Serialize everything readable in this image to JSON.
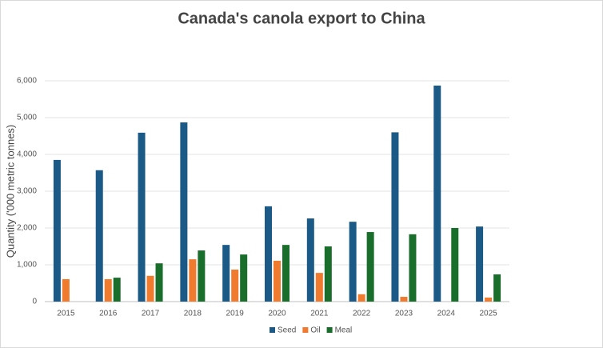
{
  "chart_data": {
    "type": "bar",
    "title": "Canada's canola export to China",
    "y_label": "Quantity ('000 metric tonnes)",
    "categories": [
      "2015",
      "2016",
      "2017",
      "2018",
      "2019",
      "2020",
      "2021",
      "2022",
      "2023",
      "2024",
      "2025"
    ],
    "series": [
      {
        "name": "Seed",
        "color": "#1b5a86",
        "values": [
          3850,
          3570,
          4590,
          4870,
          1540,
          2590,
          2260,
          2170,
          4600,
          5870,
          2040
        ]
      },
      {
        "name": "Oil",
        "color": "#f07b2f",
        "values": [
          610,
          610,
          700,
          1150,
          870,
          1110,
          780,
          200,
          130,
          null,
          110
        ]
      },
      {
        "name": "Meal",
        "color": "#1a6e2b",
        "values": [
          null,
          650,
          1040,
          1390,
          1280,
          1540,
          1500,
          1890,
          1830,
          2000,
          740
        ]
      }
    ],
    "ylim": [
      0,
      6000
    ],
    "yticks": [
      0,
      {
        "value": 1000,
        "label": "1,000"
      },
      {
        "value": 2000,
        "label": "2,000"
      },
      {
        "value": 3000,
        "label": "3,000"
      },
      {
        "value": 4000,
        "label": "4,000"
      },
      {
        "value": 5000,
        "label": "5,000"
      },
      {
        "value": 6000,
        "label": "6,000"
      }
    ],
    "grid": true,
    "legend": "bottom"
  }
}
